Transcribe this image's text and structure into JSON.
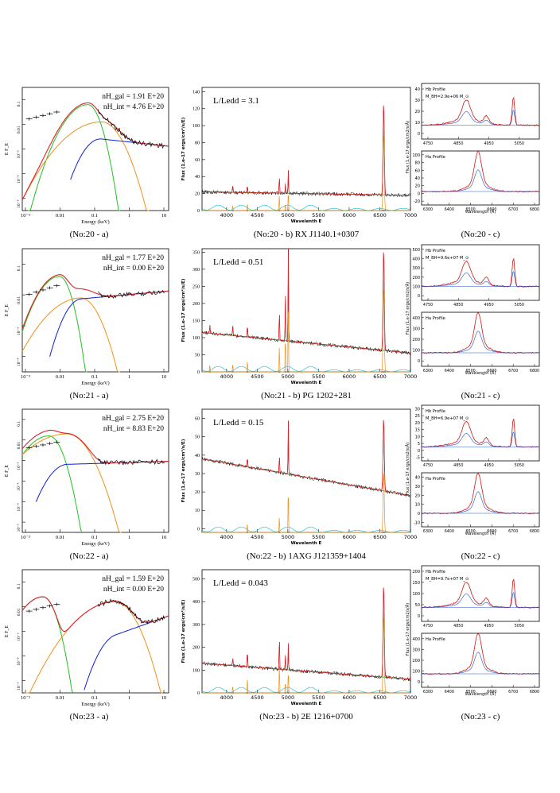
{
  "rows": [
    {
      "id": "20",
      "sed": {
        "caption": "(No:20 - a)",
        "nh_gal": "nH_gal = 1.91 E+20",
        "nh_int": "nH_int = 4.76 E+20",
        "xlabel": "Energy (keV)",
        "ylabel": "E F_E",
        "xticks": [
          "10⁻³",
          "0.01",
          "0.1",
          "1",
          "10"
        ],
        "yticks": [
          "10⁻⁵",
          "10⁻⁴",
          "10⁻³",
          "0.01",
          "0.1"
        ],
        "curves": {
          "disk_peak_keV": 0.08,
          "disk_peak_level": -1.7,
          "corona_peak_keV": 0.2,
          "corona_peak_level": -2.4,
          "powerlaw_level": -3.2,
          "powerlaw_slope": -0.15
        }
      },
      "spectrum": {
        "caption": "(No:20 - b) RX J1140.1+0307",
        "lledd": "L/Ledd  =  3.1",
        "xlabel": "Wavelenth E",
        "ylabel": "Flux (1.e-17 ergs/cm²/s/E)",
        "xticks": [
          "4000",
          "4500",
          "5000",
          "5500",
          "6000",
          "6500",
          "7000"
        ],
        "yticks": [
          "0",
          "20",
          "40",
          "60",
          "80",
          "100",
          "120",
          "140"
        ],
        "xlim": [
          3600,
          7000
        ],
        "ylim": [
          0,
          145
        ],
        "continuum": [
          22,
          18
        ],
        "lines": [
          [
            4100,
            8
          ],
          [
            4340,
            10
          ],
          [
            4861,
            22
          ],
          [
            4959,
            10
          ],
          [
            5007,
            28
          ],
          [
            6563,
            110
          ]
        ]
      },
      "profile": {
        "caption": "(No:20 - c)",
        "hb_label": "Hb Profile",
        "mass_label": "M_BH=2.9e+06 M_⊙",
        "ha_label": "Ha Profile",
        "xlabel": "Wavelength (Å)",
        "ylabel": "Flux (1.e-17 ergs/cm2/s/Å)",
        "top_xticks": [
          "4750",
          "4800",
          "4850",
          "4900",
          "4950",
          "5000",
          "5050",
          "5100"
        ],
        "bottom_xticks": [
          "6300",
          "6400",
          "6500",
          "6600",
          "6700",
          "6800"
        ],
        "top_yticks": [
          "0",
          "10",
          "20",
          "30",
          "40"
        ],
        "bottom_yticks": [
          "-20",
          "0",
          "20",
          "40",
          "60",
          "80",
          "100"
        ]
      }
    },
    {
      "id": "21",
      "sed": {
        "caption": "(No:21 - a)",
        "nh_gal": "nH_gal = 1.77 E+20",
        "nh_int": "nH_int = 0.00 E+20",
        "xlabel": "Energy (keV)",
        "ylabel": "E F_E",
        "xticks": [
          "10⁻³",
          "0.01",
          "0.1",
          "1",
          "10"
        ],
        "yticks": [
          "10⁻⁴",
          "10⁻³",
          "0.01",
          "0.1"
        ],
        "curves": {
          "disk_peak_keV": 0.012,
          "disk_peak_level": -1.9,
          "corona_peak_keV": 0.05,
          "corona_peak_level": -2.6,
          "powerlaw_level": -2.5,
          "powerlaw_slope": 0.1
        }
      },
      "spectrum": {
        "caption": "(No:21 - b) PG 1202+281",
        "lledd": "L/Ledd  =  0.51",
        "xlabel": "Wavelenth E",
        "ylabel": "Flux (1.e-17 ergs/cm²/s/E)",
        "xticks": [
          "4000",
          "4500",
          "5000",
          "5500",
          "6000",
          "6500",
          "7000"
        ],
        "yticks": [
          "0",
          "50",
          "100",
          "150",
          "200",
          "250",
          "300",
          "350"
        ],
        "xlim": [
          3600,
          7000
        ],
        "ylim": [
          0,
          360
        ],
        "continuum": [
          115,
          55
        ],
        "lines": [
          [
            3727,
            25
          ],
          [
            4101,
            30
          ],
          [
            4340,
            40
          ],
          [
            4861,
            90
          ],
          [
            4959,
            130
          ],
          [
            5007,
            280
          ],
          [
            6563,
            300
          ]
        ]
      },
      "profile": {
        "caption": "(No:21 - c)",
        "hb_label": "Hb Profile",
        "mass_label": "M_BH=9.6e+07 M_⊙",
        "ha_label": "Ha Profile",
        "xlabel": "Wavelength (Å)",
        "ylabel": "Flux (1.e-17 ergs/cm2/s/Å)",
        "top_xticks": [
          "4750",
          "4800",
          "4850",
          "4900",
          "4950",
          "5000",
          "5050",
          "5100"
        ],
        "bottom_xticks": [
          "6300",
          "6400",
          "6500",
          "6600",
          "6700",
          "6800"
        ],
        "top_yticks": [
          "0",
          "100",
          "200",
          "300",
          "400",
          "500"
        ],
        "bottom_yticks": [
          "0",
          "100",
          "200",
          "300",
          "400"
        ]
      }
    },
    {
      "id": "22",
      "sed": {
        "caption": "(No:22 - a)",
        "nh_gal": "nH_gal = 2.75 E+20",
        "nh_int": "nH_int = 8.83 E+20",
        "xlabel": "Energy (keV)",
        "ylabel": "E F_E",
        "xticks": [
          "10⁻³",
          "0.01",
          "0.1",
          "1",
          "10"
        ],
        "yticks": [
          "10⁻⁶",
          "10⁻⁵",
          "10⁻⁴",
          "10⁻³",
          "0.01",
          "0.1"
        ],
        "curves": {
          "disk_peak_keV": 0.006,
          "disk_peak_level": -2.3,
          "corona_peak_keV": 0.02,
          "corona_peak_level": -2.2,
          "powerlaw_level": -3.6,
          "powerlaw_slope": 0.05
        }
      },
      "spectrum": {
        "caption": "(No:22 - b) 1AXG J121359+1404",
        "lledd": "L/Ledd  =  0.15",
        "xlabel": "Wavelenth E",
        "ylabel": "Flux (1.e-17 ergs/cm²/s/E)",
        "xticks": [
          "4000",
          "4500",
          "5000",
          "5500",
          "6000",
          "6500",
          "7000"
        ],
        "yticks": [
          "0",
          "10",
          "20",
          "30",
          "40",
          "50",
          "60"
        ],
        "xlim": [
          3600,
          7000
        ],
        "ylim": [
          -2,
          65
        ],
        "continuum": [
          38,
          18
        ],
        "lines": [
          [
            4340,
            6
          ],
          [
            4861,
            10
          ],
          [
            5007,
            30
          ],
          [
            6563,
            40
          ]
        ]
      },
      "profile": {
        "caption": "(No:22 - c)",
        "hb_label": "Hb Profile",
        "mass_label": "M_BH=6.9e+07 M_⊙",
        "ha_label": "Ha Profile",
        "xlabel": "Wavelength (Å)",
        "ylabel": "Flux (1.e-17 ergs/cm2/s/Å)",
        "top_xticks": [
          "4750",
          "4800",
          "4850",
          "4900",
          "4950",
          "5000",
          "5050",
          "5100"
        ],
        "bottom_xticks": [
          "6300",
          "6400",
          "6500",
          "6600",
          "6700",
          "6800"
        ],
        "top_yticks": [
          "-5",
          "0",
          "5",
          "10",
          "15",
          "20",
          "25",
          "30"
        ],
        "bottom_yticks": [
          "-10",
          "0",
          "10",
          "20",
          "30",
          "40"
        ]
      }
    },
    {
      "id": "23",
      "sed": {
        "caption": "(No:23 - a)",
        "nh_gal": "nH_gal = 1.59 E+20",
        "nh_int": "nH_int = 0.00 E+20",
        "xlabel": "Energy (keV)",
        "ylabel": "E F_E",
        "xticks": [
          "10⁻³",
          "0.01",
          "0.1",
          "1",
          "10"
        ],
        "yticks": [
          "10⁻⁵",
          "10⁻⁴",
          "10⁻³",
          "0.01",
          "0.1"
        ],
        "curves": {
          "disk_peak_keV": 0.004,
          "disk_peak_level": -2.1,
          "corona_peak_keV": 0.5,
          "corona_peak_level": -2.3,
          "powerlaw_level": -3.5,
          "powerlaw_slope": 0.5
        }
      },
      "spectrum": {
        "caption": "(No:23 - b) 2E 1216+0700",
        "lledd": "L/Ledd  =  0.043",
        "xlabel": "Wavelenth E",
        "ylabel": "Flux (1.e-17 ergs/cm²/s/E)",
        "xticks": [
          "4000",
          "4500",
          "5000",
          "5500",
          "6000",
          "6500",
          "7000"
        ],
        "yticks": [
          "0",
          "100",
          "200",
          "300",
          "400",
          "500"
        ],
        "xlim": [
          3600,
          7000
        ],
        "ylim": [
          0,
          540
        ],
        "continuum": [
          130,
          60
        ],
        "lines": [
          [
            4101,
            40
          ],
          [
            4340,
            80
          ],
          [
            4861,
            150
          ],
          [
            4959,
            60
          ],
          [
            5007,
            120
          ],
          [
            6563,
            410
          ]
        ]
      },
      "profile": {
        "caption": "(No:23 - c)",
        "hb_label": "Hb Profile",
        "mass_label": "M_BH=9.7e+07 M_⊙",
        "ha_label": "Ha Profile",
        "xlabel": "Wavelength (Å)",
        "ylabel": "Flux (1.e-17 ergs/cm2/s/Å)",
        "top_xticks": [
          "4750",
          "4800",
          "4850",
          "4900",
          "4950",
          "5000",
          "5050",
          "5100"
        ],
        "bottom_xticks": [
          "6300",
          "6400",
          "6500",
          "6600",
          "6700",
          "6800"
        ],
        "top_yticks": [
          "0",
          "50",
          "100",
          "150",
          "200"
        ],
        "bottom_yticks": [
          "0",
          "100",
          "200",
          "300",
          "400"
        ]
      }
    }
  ],
  "colors": {
    "data": "#000000",
    "total_model": "#e0202a",
    "disk": "#22c020",
    "corona": "#f0901a",
    "powerlaw": "#1020d0",
    "continuum": "#22c020",
    "fe_template": "#20c8e0",
    "narrow_lines": "#f0901a",
    "profile_model": "#d01818",
    "profile_components": "#2050d0"
  },
  "chart_data": [
    {
      "type": "line",
      "panel": "No:20 - a",
      "title": "",
      "xlabel": "Energy (keV)",
      "ylabel": "E F_E",
      "xscale": "log",
      "yscale": "log",
      "annotations": [
        "nH_gal = 1.91 E+20",
        "nH_int = 4.76 E+20"
      ]
    },
    {
      "type": "line",
      "panel": "No:20 - b",
      "xlabel": "Wavelenth E",
      "xlim": [
        3600,
        7000
      ],
      "ylim": [
        0,
        145
      ],
      "annotations": [
        "L/Ledd  =  3.1"
      ]
    },
    {
      "type": "line",
      "panel": "No:20 - c",
      "annotations": [
        "Hb Profile",
        "M_BH=2.9e+06",
        "Ha Profile"
      ]
    },
    {
      "type": "line",
      "panel": "No:21 - a",
      "xlabel": "Energy (keV)",
      "xscale": "log",
      "yscale": "log",
      "annotations": [
        "nH_gal = 1.77 E+20",
        "nH_int = 0.00 E+20"
      ]
    },
    {
      "type": "line",
      "panel": "No:21 - b",
      "xlim": [
        3600,
        7000
      ],
      "ylim": [
        0,
        360
      ],
      "annotations": [
        "L/Ledd  =  0.51"
      ]
    },
    {
      "type": "line",
      "panel": "No:21 - c",
      "annotations": [
        "Hb Profile",
        "M_BH=9.6e+07",
        "Ha Profile"
      ]
    },
    {
      "type": "line",
      "panel": "No:22 - a",
      "xlabel": "Energy (keV)",
      "xscale": "log",
      "yscale": "log",
      "annotations": [
        "nH_gal = 2.75 E+20",
        "nH_int = 8.83 E+20"
      ]
    },
    {
      "type": "line",
      "panel": "No:22 - b",
      "xlim": [
        3600,
        7000
      ],
      "ylim": [
        -2,
        65
      ],
      "annotations": [
        "L/Ledd  =  0.15"
      ]
    },
    {
      "type": "line",
      "panel": "No:22 - c",
      "annotations": [
        "Hb Profile",
        "M_BH=6.9e+07",
        "Ha Profile"
      ]
    },
    {
      "type": "line",
      "panel": "No:23 - a",
      "xlabel": "Energy (keV)",
      "xscale": "log",
      "yscale": "log",
      "annotations": [
        "nH_gal = 1.59 E+20",
        "nH_int = 0.00 E+20"
      ]
    },
    {
      "type": "line",
      "panel": "No:23 - b",
      "xlim": [
        3600,
        7000
      ],
      "ylim": [
        0,
        540
      ],
      "annotations": [
        "L/Ledd  =  0.043"
      ]
    },
    {
      "type": "line",
      "panel": "No:23 - c",
      "annotations": [
        "Hb Profile",
        "M_BH=9.7e+07",
        "Ha Profile"
      ]
    }
  ]
}
